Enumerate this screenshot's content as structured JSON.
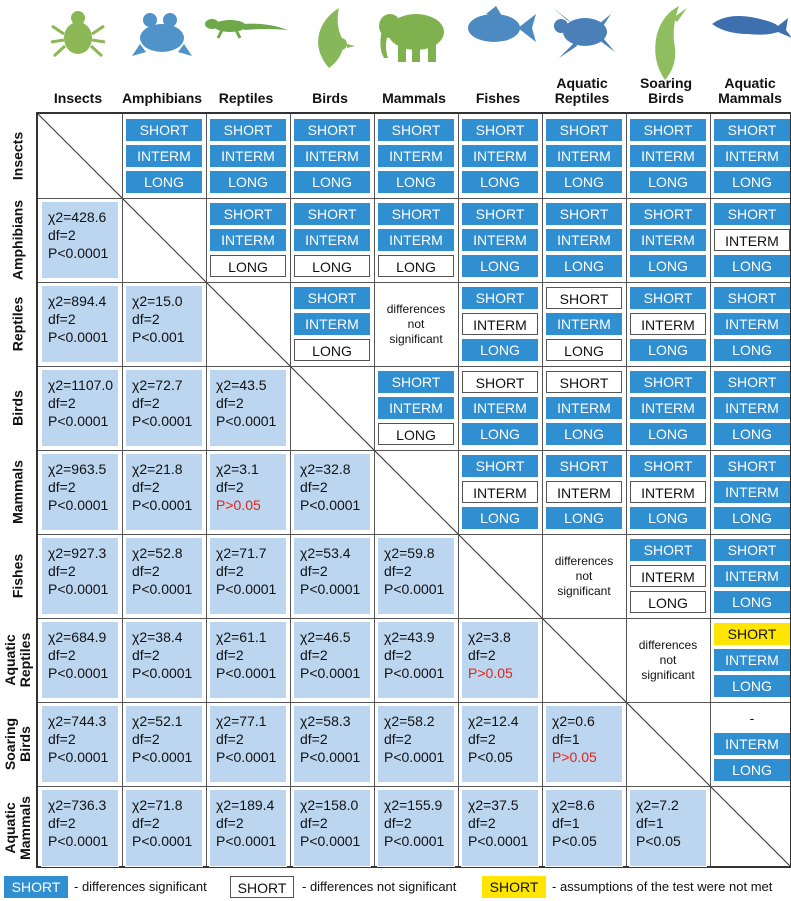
{
  "colors": {
    "significant": "#2f8fd0",
    "not_significant": "#ffffff",
    "assumptions_not_met": "#ffe500",
    "stat_cell": "#bcd6f0",
    "red_text": "#e2231a"
  },
  "groups": [
    {
      "label": "Insects",
      "row_label": "Insects",
      "icon": "insect-icon"
    },
    {
      "label": "Amphibians",
      "row_label": "Amphibians",
      "icon": "frog-icon"
    },
    {
      "label": "Reptiles",
      "row_label": "Reptiles",
      "icon": "lizard-icon"
    },
    {
      "label": "Birds",
      "row_label": "Birds",
      "icon": "bird-icon"
    },
    {
      "label": "Mammals",
      "row_label": "Mammals",
      "icon": "elephant-icon"
    },
    {
      "label": "Fishes",
      "row_label": "Fishes",
      "icon": "fish-icon"
    },
    {
      "label": "Aquatic\nReptiles",
      "row_label": "Aquatic\nReptiles",
      "icon": "turtle-icon"
    },
    {
      "label": "Soaring\nBirds",
      "row_label": "Soaring\nBirds",
      "icon": "albatross-icon"
    },
    {
      "label": "Aquatic\nMammals",
      "row_label": "Aquatic\nMammals",
      "icon": "whale-icon"
    }
  ],
  "upper": [
    {
      "row": 0,
      "col": 1,
      "items": [
        [
          "SHORT",
          "sig"
        ],
        [
          "INTERM",
          "sig"
        ],
        [
          "LONG",
          "sig"
        ]
      ]
    },
    {
      "row": 0,
      "col": 2,
      "items": [
        [
          "SHORT",
          "sig"
        ],
        [
          "INTERM",
          "sig"
        ],
        [
          "LONG",
          "sig"
        ]
      ]
    },
    {
      "row": 0,
      "col": 3,
      "items": [
        [
          "SHORT",
          "sig"
        ],
        [
          "INTERM",
          "sig"
        ],
        [
          "LONG",
          "sig"
        ]
      ]
    },
    {
      "row": 0,
      "col": 4,
      "items": [
        [
          "SHORT",
          "sig"
        ],
        [
          "INTERM",
          "sig"
        ],
        [
          "LONG",
          "sig"
        ]
      ]
    },
    {
      "row": 0,
      "col": 5,
      "items": [
        [
          "SHORT",
          "sig"
        ],
        [
          "INTERM",
          "sig"
        ],
        [
          "LONG",
          "sig"
        ]
      ]
    },
    {
      "row": 0,
      "col": 6,
      "items": [
        [
          "SHORT",
          "sig"
        ],
        [
          "INTERM",
          "sig"
        ],
        [
          "LONG",
          "sig"
        ]
      ]
    },
    {
      "row": 0,
      "col": 7,
      "items": [
        [
          "SHORT",
          "sig"
        ],
        [
          "INTERM",
          "sig"
        ],
        [
          "LONG",
          "sig"
        ]
      ]
    },
    {
      "row": 0,
      "col": 8,
      "items": [
        [
          "SHORT",
          "sig"
        ],
        [
          "INTERM",
          "sig"
        ],
        [
          "LONG",
          "sig"
        ]
      ]
    },
    {
      "row": 1,
      "col": 2,
      "items": [
        [
          "SHORT",
          "sig"
        ],
        [
          "INTERM",
          "sig"
        ],
        [
          "LONG",
          "nsig"
        ]
      ]
    },
    {
      "row": 1,
      "col": 3,
      "items": [
        [
          "SHORT",
          "sig"
        ],
        [
          "INTERM",
          "sig"
        ],
        [
          "LONG",
          "nsig"
        ]
      ]
    },
    {
      "row": 1,
      "col": 4,
      "items": [
        [
          "SHORT",
          "sig"
        ],
        [
          "INTERM",
          "sig"
        ],
        [
          "LONG",
          "nsig"
        ]
      ]
    },
    {
      "row": 1,
      "col": 5,
      "items": [
        [
          "SHORT",
          "sig"
        ],
        [
          "INTERM",
          "sig"
        ],
        [
          "LONG",
          "sig"
        ]
      ]
    },
    {
      "row": 1,
      "col": 6,
      "items": [
        [
          "SHORT",
          "sig"
        ],
        [
          "INTERM",
          "sig"
        ],
        [
          "LONG",
          "sig"
        ]
      ]
    },
    {
      "row": 1,
      "col": 7,
      "items": [
        [
          "SHORT",
          "sig"
        ],
        [
          "INTERM",
          "sig"
        ],
        [
          "LONG",
          "sig"
        ]
      ]
    },
    {
      "row": 1,
      "col": 8,
      "items": [
        [
          "SHORT",
          "sig"
        ],
        [
          "INTERM",
          "nsig"
        ],
        [
          "LONG",
          "sig"
        ]
      ]
    },
    {
      "row": 2,
      "col": 3,
      "items": [
        [
          "SHORT",
          "sig"
        ],
        [
          "INTERM",
          "sig"
        ],
        [
          "LONG",
          "nsig"
        ]
      ]
    },
    {
      "row": 2,
      "col": 4,
      "note": "differences\nnot\nsignificant"
    },
    {
      "row": 2,
      "col": 5,
      "items": [
        [
          "SHORT",
          "sig"
        ],
        [
          "INTERM",
          "nsig"
        ],
        [
          "LONG",
          "sig"
        ]
      ]
    },
    {
      "row": 2,
      "col": 6,
      "items": [
        [
          "SHORT",
          "nsig"
        ],
        [
          "INTERM",
          "sig"
        ],
        [
          "LONG",
          "nsig"
        ]
      ]
    },
    {
      "row": 2,
      "col": 7,
      "items": [
        [
          "SHORT",
          "sig"
        ],
        [
          "INTERM",
          "nsig"
        ],
        [
          "LONG",
          "sig"
        ]
      ]
    },
    {
      "row": 2,
      "col": 8,
      "items": [
        [
          "SHORT",
          "sig"
        ],
        [
          "INTERM",
          "sig"
        ],
        [
          "LONG",
          "sig"
        ]
      ]
    },
    {
      "row": 3,
      "col": 4,
      "items": [
        [
          "SHORT",
          "sig"
        ],
        [
          "INTERM",
          "sig"
        ],
        [
          "LONG",
          "nsig"
        ]
      ]
    },
    {
      "row": 3,
      "col": 5,
      "items": [
        [
          "SHORT",
          "nsig"
        ],
        [
          "INTERM",
          "sig"
        ],
        [
          "LONG",
          "sig"
        ]
      ]
    },
    {
      "row": 3,
      "col": 6,
      "items": [
        [
          "SHORT",
          "nsig"
        ],
        [
          "INTERM",
          "sig"
        ],
        [
          "LONG",
          "sig"
        ]
      ]
    },
    {
      "row": 3,
      "col": 7,
      "items": [
        [
          "SHORT",
          "sig"
        ],
        [
          "INTERM",
          "sig"
        ],
        [
          "LONG",
          "sig"
        ]
      ]
    },
    {
      "row": 3,
      "col": 8,
      "items": [
        [
          "SHORT",
          "sig"
        ],
        [
          "INTERM",
          "sig"
        ],
        [
          "LONG",
          "sig"
        ]
      ]
    },
    {
      "row": 4,
      "col": 5,
      "items": [
        [
          "SHORT",
          "sig"
        ],
        [
          "INTERM",
          "nsig"
        ],
        [
          "LONG",
          "sig"
        ]
      ]
    },
    {
      "row": 4,
      "col": 6,
      "items": [
        [
          "SHORT",
          "sig"
        ],
        [
          "INTERM",
          "nsig"
        ],
        [
          "LONG",
          "sig"
        ]
      ]
    },
    {
      "row": 4,
      "col": 7,
      "items": [
        [
          "SHORT",
          "sig"
        ],
        [
          "INTERM",
          "nsig"
        ],
        [
          "LONG",
          "sig"
        ]
      ]
    },
    {
      "row": 4,
      "col": 8,
      "items": [
        [
          "SHORT",
          "sig"
        ],
        [
          "INTERM",
          "sig"
        ],
        [
          "LONG",
          "sig"
        ]
      ]
    },
    {
      "row": 5,
      "col": 6,
      "note": "differences\nnot\nsignificant"
    },
    {
      "row": 5,
      "col": 7,
      "items": [
        [
          "SHORT",
          "sig"
        ],
        [
          "INTERM",
          "nsig"
        ],
        [
          "LONG",
          "nsig"
        ]
      ]
    },
    {
      "row": 5,
      "col": 8,
      "items": [
        [
          "SHORT",
          "sig"
        ],
        [
          "INTERM",
          "sig"
        ],
        [
          "LONG",
          "sig"
        ]
      ]
    },
    {
      "row": 6,
      "col": 7,
      "note": "differences\nnot\nsignificant"
    },
    {
      "row": 6,
      "col": 8,
      "items": [
        [
          "SHORT",
          "assump"
        ],
        [
          "INTERM",
          "sig"
        ],
        [
          "LONG",
          "sig"
        ]
      ]
    },
    {
      "row": 7,
      "col": 8,
      "items": [
        [
          "-",
          "dash"
        ],
        [
          "INTERM",
          "sig"
        ],
        [
          "LONG",
          "sig"
        ]
      ]
    }
  ],
  "lower": [
    {
      "row": 1,
      "col": 0,
      "chi": "χ2=428.6",
      "df": "df=2",
      "p": "P<0.0001",
      "red": false
    },
    {
      "row": 2,
      "col": 0,
      "chi": "χ2=894.4",
      "df": "df=2",
      "p": "P<0.0001",
      "red": false
    },
    {
      "row": 2,
      "col": 1,
      "chi": "χ2=15.0",
      "df": "df=2",
      "p": "P<0.001",
      "red": false
    },
    {
      "row": 3,
      "col": 0,
      "chi": "χ2=1107.0",
      "df": "df=2",
      "p": "P<0.0001",
      "red": false
    },
    {
      "row": 3,
      "col": 1,
      "chi": "χ2=72.7",
      "df": "df=2",
      "p": "P<0.0001",
      "red": false
    },
    {
      "row": 3,
      "col": 2,
      "chi": "χ2=43.5",
      "df": "df=2",
      "p": "P<0.0001",
      "red": false
    },
    {
      "row": 4,
      "col": 0,
      "chi": "χ2=963.5",
      "df": "df=2",
      "p": "P<0.0001",
      "red": false
    },
    {
      "row": 4,
      "col": 1,
      "chi": "χ2=21.8",
      "df": "df=2",
      "p": "P<0.0001",
      "red": false
    },
    {
      "row": 4,
      "col": 2,
      "chi": "χ2=3.1",
      "df": "df=2",
      "p": "P>0.05",
      "red": true
    },
    {
      "row": 4,
      "col": 3,
      "chi": "χ2=32.8",
      "df": "df=2",
      "p": "P<0.0001",
      "red": false
    },
    {
      "row": 5,
      "col": 0,
      "chi": "χ2=927.3",
      "df": "df=2",
      "p": "P<0.0001",
      "red": false
    },
    {
      "row": 5,
      "col": 1,
      "chi": "χ2=52.8",
      "df": "df=2",
      "p": "P<0.0001",
      "red": false
    },
    {
      "row": 5,
      "col": 2,
      "chi": "χ2=71.7",
      "df": "df=2",
      "p": "P<0.0001",
      "red": false
    },
    {
      "row": 5,
      "col": 3,
      "chi": "χ2=53.4",
      "df": "df=2",
      "p": "P<0.0001",
      "red": false
    },
    {
      "row": 5,
      "col": 4,
      "chi": "χ2=59.8",
      "df": "df=2",
      "p": "P<0.0001",
      "red": false
    },
    {
      "row": 6,
      "col": 0,
      "chi": "χ2=684.9",
      "df": "df=2",
      "p": "P<0.0001",
      "red": false
    },
    {
      "row": 6,
      "col": 1,
      "chi": "χ2=38.4",
      "df": "df=2",
      "p": "P<0.0001",
      "red": false
    },
    {
      "row": 6,
      "col": 2,
      "chi": "χ2=61.1",
      "df": "df=2",
      "p": "P<0.0001",
      "red": false
    },
    {
      "row": 6,
      "col": 3,
      "chi": "χ2=46.5",
      "df": "df=2",
      "p": "P<0.0001",
      "red": false
    },
    {
      "row": 6,
      "col": 4,
      "chi": "χ2=43.9",
      "df": "df=2",
      "p": "P<0.0001",
      "red": false
    },
    {
      "row": 6,
      "col": 5,
      "chi": "χ2=3.8",
      "df": "df=2",
      "p": "P>0.05",
      "red": true
    },
    {
      "row": 7,
      "col": 0,
      "chi": "χ2=744.3",
      "df": "df=2",
      "p": "P<0.0001",
      "red": false
    },
    {
      "row": 7,
      "col": 1,
      "chi": "χ2=52.1",
      "df": "df=2",
      "p": "P<0.0001",
      "red": false
    },
    {
      "row": 7,
      "col": 2,
      "chi": "χ2=77.1",
      "df": "df=2",
      "p": "P<0.0001",
      "red": false
    },
    {
      "row": 7,
      "col": 3,
      "chi": "χ2=58.3",
      "df": "df=2",
      "p": "P<0.0001",
      "red": false
    },
    {
      "row": 7,
      "col": 4,
      "chi": "χ2=58.2",
      "df": "df=2",
      "p": "P<0.0001",
      "red": false
    },
    {
      "row": 7,
      "col": 5,
      "chi": "χ2=12.4",
      "df": "df=2",
      "p": "P<0.05",
      "red": false
    },
    {
      "row": 7,
      "col": 6,
      "chi": "χ2=0.6",
      "df": "df=1",
      "p": "P>0.05",
      "red": true
    },
    {
      "row": 8,
      "col": 0,
      "chi": "χ2=736.3",
      "df": "df=2",
      "p": "P<0.0001",
      "red": false
    },
    {
      "row": 8,
      "col": 1,
      "chi": "χ2=71.8",
      "df": "df=2",
      "p": "P<0.0001",
      "red": false
    },
    {
      "row": 8,
      "col": 2,
      "chi": "χ2=189.4",
      "df": "df=2",
      "p": "P<0.0001",
      "red": false
    },
    {
      "row": 8,
      "col": 3,
      "chi": "χ2=158.0",
      "df": "df=2",
      "p": "P<0.0001",
      "red": false
    },
    {
      "row": 8,
      "col": 4,
      "chi": "χ2=155.9",
      "df": "df=2",
      "p": "P<0.0001",
      "red": false
    },
    {
      "row": 8,
      "col": 5,
      "chi": "χ2=37.5",
      "df": "df=2",
      "p": "P<0.0001",
      "red": false
    },
    {
      "row": 8,
      "col": 6,
      "chi": "χ2=8.6",
      "df": "df=1",
      "p": "P<0.05",
      "red": false
    },
    {
      "row": 8,
      "col": 7,
      "chi": "χ2=7.2",
      "df": "df=1",
      "p": "P<0.05",
      "red": false
    }
  ],
  "legend": {
    "sig_box": "SHORT",
    "sig_text": "- differences significant",
    "nsig_box": "SHORT",
    "nsig_text": "- differences not significant",
    "assump_box": "SHORT",
    "assump_text": "- assumptions of the test were not met"
  }
}
